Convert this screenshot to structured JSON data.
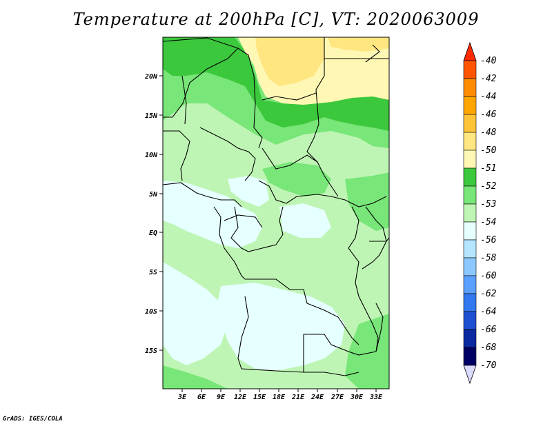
{
  "title": "Temperature at 200hPa [C], VT: 2020063009",
  "credit": "GrADS: IGES/COLA",
  "lat_labels": [
    "20N",
    "15N",
    "10N",
    "5N",
    "EQ",
    "5S",
    "10S",
    "15S"
  ],
  "lon_labels": [
    "3E",
    "6E",
    "9E",
    "12E",
    "15E",
    "18E",
    "21E",
    "24E",
    "27E",
    "30E",
    "33E"
  ],
  "colorbar": {
    "labels": [
      "-40",
      "-42",
      "-44",
      "-46",
      "-48",
      "-50",
      "-51",
      "-52",
      "-53",
      "-54",
      "-56",
      "-58",
      "-60",
      "-62",
      "-64",
      "-66",
      "-68",
      "-70"
    ],
    "colors": [
      "#ff2a00",
      "#ff5500",
      "#ff8c00",
      "#ffa500",
      "#ffc338",
      "#ffe680",
      "#fff8b4",
      "#3cc83c",
      "#78e678",
      "#bef5b4",
      "#e6ffff",
      "#b4e6ff",
      "#8cc8ff",
      "#5aa0ff",
      "#3278f0",
      "#1e50d2",
      "#0a28a0",
      "#000064",
      "#dcdcff"
    ]
  }
}
